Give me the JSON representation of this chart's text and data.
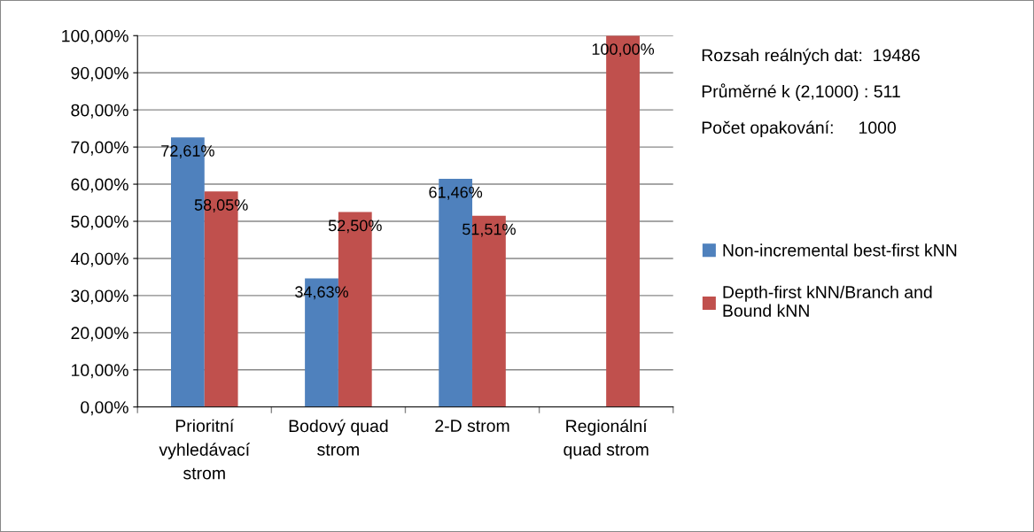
{
  "chart_data": {
    "type": "bar",
    "categories": [
      "Prioritní vyhledávací strom",
      "Bodový quad strom",
      "2-D strom",
      "Regionální quad strom"
    ],
    "series": [
      {
        "name": "Non-incremental best-first kNN",
        "color": "#4f81bd",
        "values": [
          72.61,
          34.63,
          61.46,
          null
        ],
        "value_labels": [
          "72,61%",
          "34,63%",
          "61,46%",
          null
        ]
      },
      {
        "name": "Depth-first kNN/Branch and Bound kNN",
        "color": "#c0504d",
        "values": [
          58.05,
          52.5,
          51.51,
          100.0
        ],
        "value_labels": [
          "58,05%",
          "52,50%",
          "51,51%",
          "100,00%"
        ]
      }
    ],
    "ylim": [
      0,
      100
    ],
    "yticks": [
      {
        "value": 0,
        "label": "0,00%"
      },
      {
        "value": 10,
        "label": "10,00%"
      },
      {
        "value": 20,
        "label": "20,00%"
      },
      {
        "value": 30,
        "label": "30,00%"
      },
      {
        "value": 40,
        "label": "40,00%"
      },
      {
        "value": 50,
        "label": "50,00%"
      },
      {
        "value": 60,
        "label": "60,00%"
      },
      {
        "value": 70,
        "label": "70,00%"
      },
      {
        "value": 80,
        "label": "80,00%"
      },
      {
        "value": 90,
        "label": "90,00%"
      },
      {
        "value": 100,
        "label": "100,00%"
      }
    ],
    "grid": "y",
    "legend": "right",
    "annotations": [
      "Rozsah reálných dat:  19486",
      "Průměrné k (2,1000) : 511",
      "Počet opakování:     1000"
    ]
  }
}
